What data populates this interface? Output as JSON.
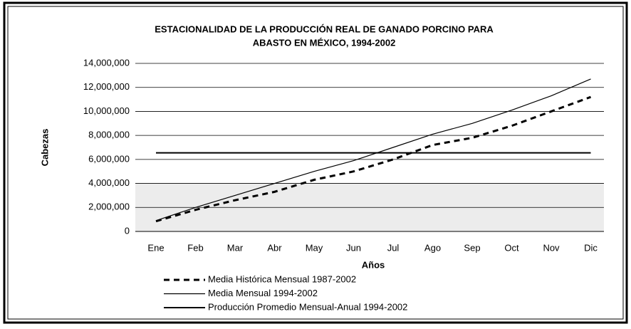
{
  "chart_data": {
    "type": "line",
    "title": [
      "ESTACIONALIDAD DE LA PRODUCCIÓN REAL DE GANADO PORCINO PARA",
      "ABASTO EN MÉXICO, 1994-2002"
    ],
    "x_label": "Años",
    "y_label": "Cabezas",
    "categories": [
      "Ene",
      "Feb",
      "Mar",
      "Abr",
      "May",
      "Jun",
      "Jul",
      "Ago",
      "Sep",
      "Oct",
      "Nov",
      "Dic"
    ],
    "series": [
      {
        "name": "Media Histórica Mensual 1987-2002",
        "color": "#000000",
        "style": "dashed",
        "values": [
          850000,
          1800000,
          2600000,
          3300000,
          4300000,
          5000000,
          6000000,
          7200000,
          7800000,
          8800000,
          10000000,
          11200000
        ]
      },
      {
        "name": "Media Mensual 1994-2002",
        "color": "#000000",
        "style": "solid",
        "values": [
          900000,
          2000000,
          3000000,
          4000000,
          5000000,
          5900000,
          7000000,
          8100000,
          9000000,
          10100000,
          11300000,
          12700000
        ]
      },
      {
        "name": "Producción Promedio Mensual-Anual 1994-2002",
        "color": "#000000",
        "style": "thick",
        "values": [
          6550000,
          6550000,
          6550000,
          6550000,
          6550000,
          6550000,
          6550000,
          6550000,
          6550000,
          6550000,
          6550000,
          6550000
        ]
      }
    ],
    "ylim": [
      0,
      14000000
    ],
    "yticks": [
      0,
      {
        "value": 2000000,
        "label": "2,000,000"
      },
      {
        "value": 4000000,
        "label": "4,000,000"
      },
      {
        "value": 6000000,
        "label": "6,000,000"
      },
      {
        "value": 8000000,
        "label": "8,000,000"
      },
      {
        "value": 10000000,
        "label": "10,000,000"
      },
      {
        "value": 12000000,
        "label": "12,000,000"
      },
      {
        "value": 14000000,
        "label": "14,000,000"
      }
    ],
    "grid": true
  }
}
